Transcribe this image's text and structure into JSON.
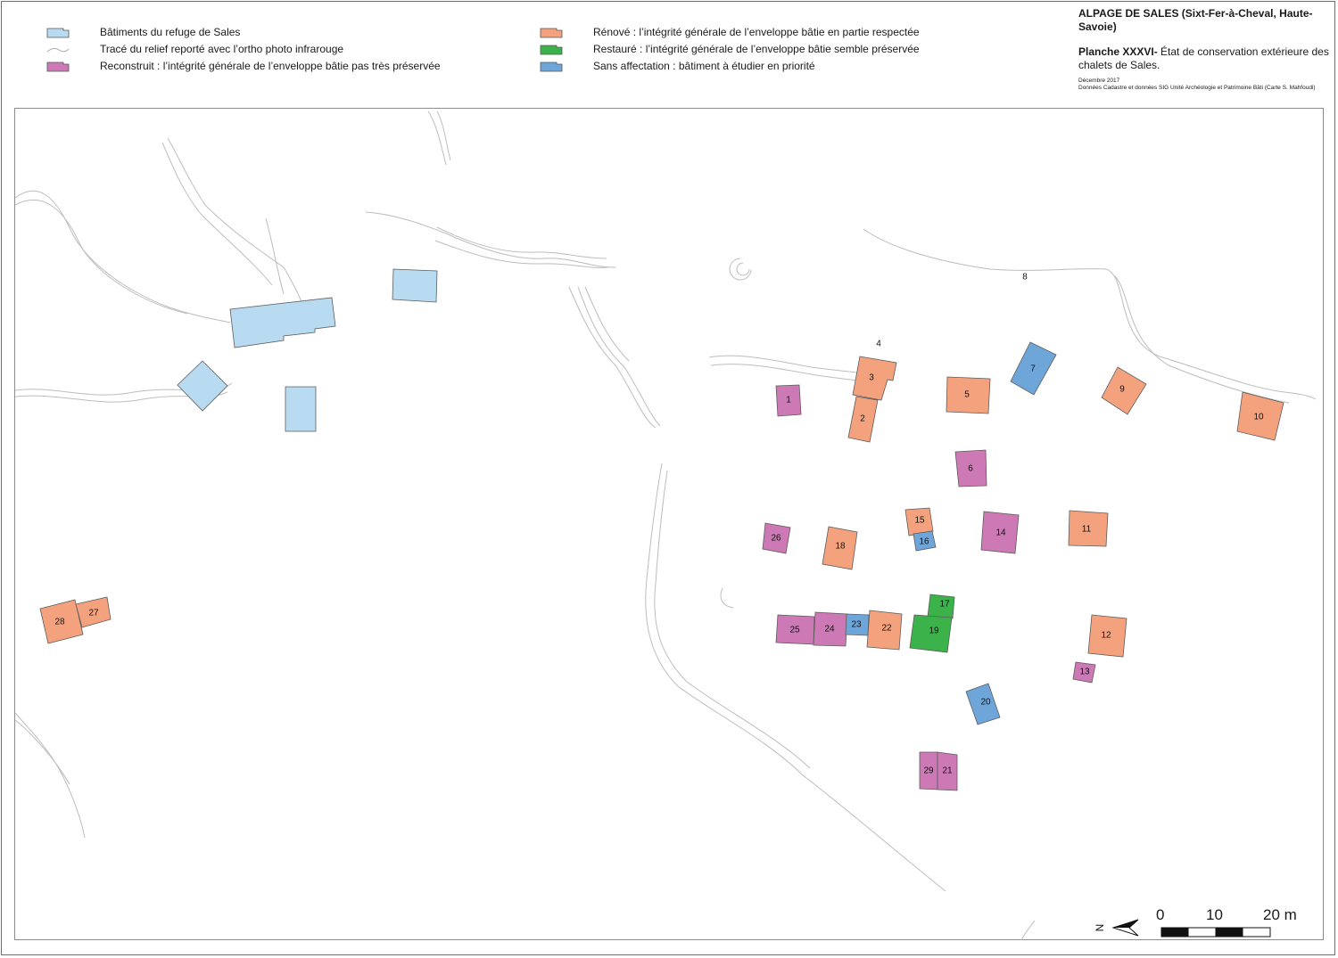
{
  "legend": [
    {
      "key": "refuge",
      "label": "Bâtiments du refuge de Sales",
      "color": "#b9dbf1"
    },
    {
      "key": "relief",
      "label": "Tracé du relief reporté avec l’ortho photo infrarouge",
      "color": "#c8c8c8"
    },
    {
      "key": "reconstruit",
      "label": "Reconstruit : l’intégrité générale de l’enveloppe bâtie pas très préservée",
      "color": "#cc79b6"
    },
    {
      "key": "renove",
      "label": "Rénové : l’intégrité générale de l’enveloppe bâtie en partie respectée",
      "color": "#f4a27e"
    },
    {
      "key": "restaure",
      "label": "Restauré : l’intégrité générale de l’enveloppe bâtie semble préservée",
      "color": "#3bb24a"
    },
    {
      "key": "sans",
      "label": "Sans affectation : bâtiment à étudier en priorité",
      "color": "#6fa6da"
    }
  ],
  "title": {
    "main": "ALPAGE DE SALES (Sixt-Fer-à-Cheval, Haute-Savoie)",
    "plate_label": "Planche XXXVI-",
    "plate_text": " État de conservation extérieure des chalets de Sales.",
    "date": "Décembre 2017",
    "source": "Données Cadastre et données SIG Unité Archéologie et Patrimoine Bâti (Carte S. Mahfoudi)"
  },
  "buildings": [
    {
      "id": "1",
      "status": "reconstruit"
    },
    {
      "id": "2",
      "status": "renove"
    },
    {
      "id": "3",
      "status": "renove"
    },
    {
      "id": "4",
      "status": "label-only"
    },
    {
      "id": "5",
      "status": "renove"
    },
    {
      "id": "6",
      "status": "reconstruit"
    },
    {
      "id": "7",
      "status": "sans"
    },
    {
      "id": "8",
      "status": "label-only"
    },
    {
      "id": "9",
      "status": "renove"
    },
    {
      "id": "10",
      "status": "renove"
    },
    {
      "id": "11",
      "status": "renove"
    },
    {
      "id": "12",
      "status": "renove"
    },
    {
      "id": "13",
      "status": "reconstruit"
    },
    {
      "id": "14",
      "status": "reconstruit"
    },
    {
      "id": "15",
      "status": "renove"
    },
    {
      "id": "16",
      "status": "sans"
    },
    {
      "id": "17",
      "status": "restaure"
    },
    {
      "id": "18",
      "status": "renove"
    },
    {
      "id": "19",
      "status": "restaure"
    },
    {
      "id": "20",
      "status": "sans"
    },
    {
      "id": "21",
      "status": "reconstruit"
    },
    {
      "id": "22",
      "status": "renove"
    },
    {
      "id": "23",
      "status": "sans"
    },
    {
      "id": "24",
      "status": "reconstruit"
    },
    {
      "id": "25",
      "status": "reconstruit"
    },
    {
      "id": "26",
      "status": "reconstruit"
    },
    {
      "id": "27",
      "status": "renove"
    },
    {
      "id": "28",
      "status": "renove"
    },
    {
      "id": "29",
      "status": "reconstruit"
    }
  ],
  "scale": {
    "ticks": [
      "0",
      "10",
      "20 m"
    ],
    "north": "N"
  }
}
